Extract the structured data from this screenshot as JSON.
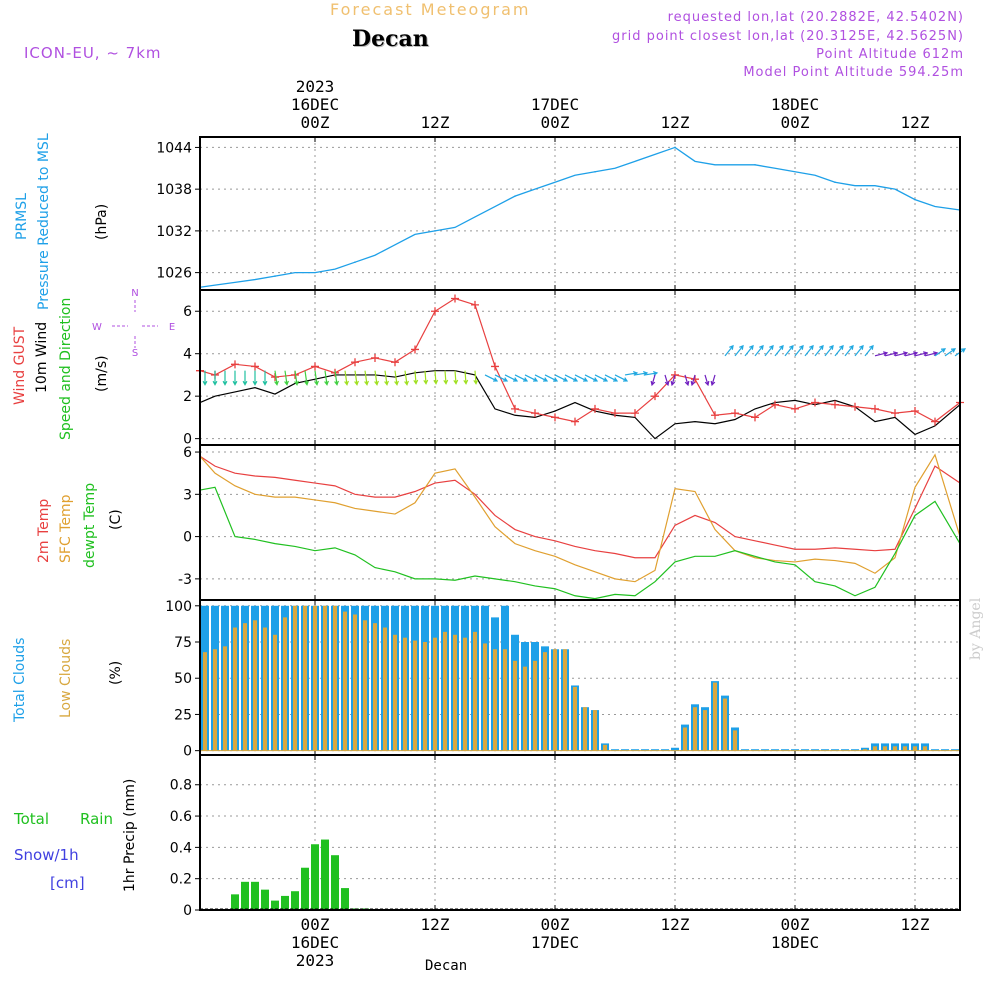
{
  "header": {
    "title": "Forecast Meteogram",
    "location": "Decan",
    "model": "ICON-EU, ~ 7km",
    "requested": "requested lon,lat (20.2882E, 42.5402N)",
    "grid_point": "grid point closest lon,lat (20.3125E, 42.5625N)",
    "point_altitude": "Point Altitude 612m",
    "model_altitude": "Model Point Altitude 594.25m"
  },
  "footer_label": "Decan",
  "credit": "by Angel",
  "time_axis": {
    "top": [
      {
        "label": "00Z",
        "date": "16DEC",
        "year": "2023",
        "hour": 24
      },
      {
        "label": "12Z",
        "hour": 36
      },
      {
        "label": "00Z",
        "date": "17DEC",
        "hour": 48
      },
      {
        "label": "12Z",
        "hour": 60
      },
      {
        "label": "00Z",
        "date": "18DEC",
        "hour": 72
      },
      {
        "label": "12Z",
        "hour": 84
      }
    ],
    "range_hours": [
      12.5,
      88.5
    ]
  },
  "panel_labels": {
    "pressure": {
      "l1": "PRMSL",
      "l2": "Pressure Reduced to MSL",
      "unit": "(hPa)"
    },
    "wind": {
      "l1": "Wind GUST",
      "l2": "10m Wind",
      "l3": "Speed and Direction",
      "unit": "(m/s)",
      "compass_n": "N",
      "compass_s": "S",
      "compass_w": "W",
      "compass_e": "E"
    },
    "temp": {
      "l1": "2m Temp",
      "l2": "SFC Temp",
      "l3": "dewpt Temp",
      "unit": "(C)"
    },
    "clouds": {
      "l1": "Total Clouds",
      "l2": "Low Clouds",
      "unit": "(%)"
    },
    "precip": {
      "l1": "Total Rain",
      "l2": "Snow/1h",
      "l3": "[cm]",
      "unit": "1hr Precip (mm)"
    }
  },
  "colors": {
    "pressure": "#1ea0e8",
    "gust": "#e84040",
    "wind": "#000000",
    "t2m": "#e84040",
    "tsfc": "#e0a030",
    "dewpt": "#20c020",
    "total_clouds": "#1ea0e8",
    "low_clouds": "#d8a840",
    "rain": "#20c020",
    "snow": "#4040e0",
    "label_purple": "#b050e0"
  },
  "chart_data": [
    {
      "type": "line",
      "name": "pressure",
      "ylabel": "(hPa)",
      "yticks": [
        1026,
        1032,
        1038,
        1044
      ],
      "ylim": [
        1023.5,
        1045.5
      ],
      "x": [
        12.5,
        14,
        16,
        18,
        20,
        22,
        24,
        26,
        28,
        30,
        32,
        34,
        36,
        38,
        40,
        42,
        44,
        46,
        48,
        50,
        52,
        54,
        56,
        58,
        60,
        62,
        64,
        66,
        68,
        70,
        72,
        74,
        76,
        78,
        80,
        82,
        84,
        86,
        88.5
      ],
      "values": [
        1023.9,
        1024.2,
        1024.6,
        1025.0,
        1025.5,
        1026.0,
        1026.0,
        1026.5,
        1027.5,
        1028.5,
        1030.0,
        1031.5,
        1032.0,
        1032.5,
        1034.0,
        1035.5,
        1037.0,
        1038.0,
        1039.0,
        1040.0,
        1040.5,
        1041.0,
        1042.0,
        1043.0,
        1044.0,
        1042.0,
        1041.5,
        1041.5,
        1041.5,
        1041.0,
        1040.5,
        1040.0,
        1039.0,
        1038.5,
        1038.5,
        1038.0,
        1036.5,
        1035.5,
        1035.0
      ]
    },
    {
      "type": "line",
      "name": "wind",
      "ylabel": "(m/s)",
      "yticks": [
        0,
        2,
        4,
        6
      ],
      "ylim": [
        -0.3,
        7
      ],
      "x": [
        12.5,
        14,
        16,
        18,
        20,
        22,
        24,
        26,
        28,
        30,
        32,
        34,
        36,
        38,
        40,
        42,
        44,
        46,
        48,
        50,
        52,
        54,
        56,
        58,
        60,
        62,
        64,
        66,
        68,
        70,
        72,
        74,
        76,
        78,
        80,
        82,
        84,
        86,
        88.5
      ],
      "series": [
        {
          "name": "Wind GUST",
          "values": [
            3.2,
            3.0,
            3.5,
            3.4,
            2.9,
            3.0,
            3.4,
            3.1,
            3.6,
            3.8,
            3.6,
            4.2,
            6.0,
            6.6,
            6.3,
            3.4,
            1.4,
            1.2,
            1.0,
            0.8,
            1.4,
            1.2,
            1.2,
            2.0,
            3.0,
            2.8,
            1.1,
            1.2,
            1.0,
            1.6,
            1.4,
            1.7,
            1.6,
            1.5,
            1.4,
            1.2,
            1.3,
            0.8,
            1.7
          ]
        },
        {
          "name": "10m Wind",
          "values": [
            1.7,
            2.0,
            2.2,
            2.4,
            2.1,
            2.6,
            2.8,
            3.0,
            3.0,
            3.0,
            2.9,
            3.1,
            3.2,
            3.2,
            3.0,
            1.4,
            1.1,
            1.0,
            1.3,
            1.7,
            1.3,
            1.1,
            1.0,
            0.0,
            0.7,
            0.8,
            0.7,
            0.9,
            1.4,
            1.7,
            1.8,
            1.6,
            1.8,
            1.5,
            0.8,
            1.0,
            0.2,
            0.6,
            1.6
          ]
        }
      ]
    },
    {
      "type": "line",
      "name": "temperature",
      "ylabel": "(C)",
      "yticks": [
        -3,
        0,
        3,
        6
      ],
      "ylim": [
        -4.5,
        6.5
      ],
      "x": [
        12.5,
        14,
        16,
        18,
        20,
        22,
        24,
        26,
        28,
        30,
        32,
        34,
        36,
        38,
        40,
        42,
        44,
        46,
        48,
        50,
        52,
        54,
        56,
        58,
        60,
        62,
        64,
        66,
        68,
        70,
        72,
        74,
        76,
        78,
        80,
        82,
        84,
        86,
        88.5
      ],
      "series": [
        {
          "name": "2m Temp",
          "values": [
            5.7,
            5.0,
            4.5,
            4.3,
            4.2,
            4.0,
            3.8,
            3.6,
            3.0,
            2.8,
            2.8,
            3.2,
            3.8,
            4.0,
            3.0,
            1.5,
            0.5,
            0.0,
            -0.3,
            -0.7,
            -1.0,
            -1.2,
            -1.5,
            -1.5,
            0.8,
            1.5,
            1.0,
            0.0,
            -0.3,
            -0.6,
            -0.9,
            -0.9,
            -0.8,
            -0.9,
            -1.0,
            -0.9,
            2.0,
            5.0,
            3.8
          ]
        },
        {
          "name": "SFC Temp",
          "values": [
            5.7,
            4.5,
            3.6,
            3.0,
            2.8,
            2.8,
            2.6,
            2.4,
            2.0,
            1.8,
            1.6,
            2.4,
            4.5,
            4.8,
            2.8,
            0.7,
            -0.5,
            -1.0,
            -1.4,
            -2.0,
            -2.5,
            -3.0,
            -3.2,
            -2.4,
            3.4,
            3.2,
            0.5,
            -1.0,
            -1.5,
            -1.7,
            -1.8,
            -1.6,
            -1.7,
            -1.9,
            -2.6,
            -1.5,
            3.5,
            5.8,
            0.0
          ]
        },
        {
          "name": "dewpt Temp",
          "values": [
            3.3,
            3.5,
            0.0,
            -0.2,
            -0.5,
            -0.7,
            -1.0,
            -0.8,
            -1.3,
            -2.2,
            -2.5,
            -3.0,
            -3.0,
            -3.1,
            -2.8,
            -3.0,
            -3.2,
            -3.5,
            -3.7,
            -4.2,
            -4.4,
            -4.1,
            -4.2,
            -3.2,
            -1.8,
            -1.4,
            -1.4,
            -1.0,
            -1.4,
            -1.8,
            -2.0,
            -3.2,
            -3.5,
            -4.2,
            -3.6,
            -1.2,
            1.5,
            2.5,
            -0.5
          ]
        }
      ]
    },
    {
      "type": "bar",
      "name": "clouds",
      "ylabel": "(%)",
      "yticks": [
        0,
        25,
        50,
        75,
        100
      ],
      "ylim": [
        -3,
        104
      ],
      "x": [
        13,
        14,
        15,
        16,
        17,
        18,
        19,
        20,
        21,
        22,
        23,
        24,
        25,
        26,
        27,
        28,
        29,
        30,
        31,
        32,
        33,
        34,
        35,
        36,
        37,
        38,
        39,
        40,
        41,
        42,
        43,
        44,
        45,
        46,
        47,
        48,
        49,
        50,
        51,
        52,
        53,
        54,
        55,
        56,
        57,
        58,
        59,
        60,
        61,
        62,
        63,
        64,
        65,
        66,
        67,
        68,
        69,
        70,
        71,
        72,
        73,
        74,
        75,
        76,
        77,
        78,
        79,
        80,
        81,
        82,
        83,
        84,
        85,
        86,
        87,
        88
      ],
      "series": [
        {
          "name": "Total Clouds",
          "values": [
            100,
            100,
            100,
            100,
            100,
            100,
            100,
            100,
            100,
            100,
            100,
            100,
            100,
            100,
            100,
            100,
            100,
            100,
            100,
            100,
            100,
            100,
            100,
            100,
            100,
            100,
            100,
            100,
            100,
            92,
            100,
            80,
            75,
            75,
            72,
            70,
            70,
            45,
            30,
            28,
            5,
            1,
            1,
            1,
            1,
            1,
            1,
            2,
            18,
            32,
            30,
            48,
            38,
            16,
            1,
            1,
            1,
            1,
            1,
            1,
            1,
            1,
            1,
            1,
            1,
            1,
            2,
            5,
            5,
            5,
            5,
            5,
            5,
            1,
            1,
            1
          ]
        },
        {
          "name": "Low Clouds",
          "values": [
            68,
            70,
            72,
            85,
            88,
            90,
            85,
            80,
            92,
            100,
            100,
            100,
            100,
            100,
            96,
            94,
            90,
            88,
            85,
            80,
            78,
            76,
            75,
            78,
            82,
            80,
            78,
            82,
            74,
            70,
            70,
            62,
            58,
            62,
            68,
            70,
            70,
            44,
            30,
            28,
            4,
            0,
            0,
            0,
            0,
            0,
            0,
            0,
            16,
            30,
            28,
            47,
            36,
            14,
            0,
            0,
            0,
            0,
            0,
            0,
            0,
            0,
            0,
            0,
            0,
            0,
            1,
            3,
            3,
            3,
            3,
            3,
            3,
            0,
            0,
            0
          ]
        }
      ]
    },
    {
      "type": "bar",
      "name": "precipitation",
      "ylabel": "1hr Precip (mm)",
      "yticks": [
        0,
        0.2,
        0.4,
        0.6,
        0.8
      ],
      "ylim": [
        0,
        0.99
      ],
      "x": [
        15,
        16,
        17,
        18,
        19,
        20,
        21,
        22,
        23,
        24,
        25,
        26,
        27,
        28,
        29
      ],
      "series": [
        {
          "name": "Total Rain",
          "values": [
            0,
            0.1,
            0.18,
            0.18,
            0.13,
            0.06,
            0.09,
            0.12,
            0.27,
            0.42,
            0.45,
            0.35,
            0.14,
            0.01,
            0.01
          ]
        },
        {
          "name": "Snow/1h",
          "values": [
            0,
            0,
            0,
            0,
            0,
            0,
            0,
            0,
            0,
            0,
            0,
            0,
            0,
            0,
            0
          ]
        }
      ]
    }
  ]
}
